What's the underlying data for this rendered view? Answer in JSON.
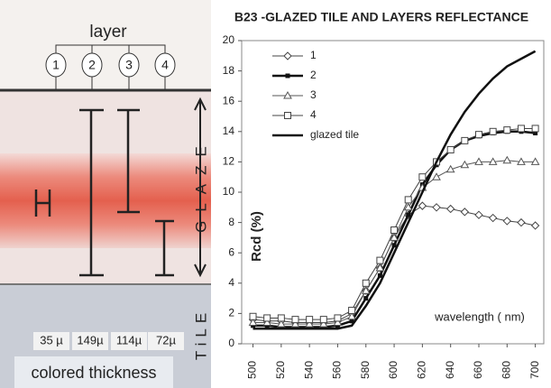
{
  "diagram": {
    "title": "layer",
    "layers": [
      "1",
      "2",
      "3",
      "4"
    ],
    "thicknesses": [
      "35 µ",
      "149µ",
      "114µ",
      "72µ"
    ],
    "caption": "colored  thickness",
    "glaze": "GLAZE",
    "tile": "TiLE"
  },
  "chart_data": {
    "type": "line",
    "title": "B23 -GLAZED TILE  AND LAYERS  REFLECTANCE",
    "y_label": "Rcd   (%)",
    "x_label": "wavelength (   nm)",
    "x": [
      500,
      510,
      520,
      530,
      540,
      550,
      560,
      570,
      580,
      590,
      600,
      610,
      620,
      630,
      640,
      650,
      660,
      670,
      680,
      690,
      700
    ],
    "series": [
      {
        "name": "1",
        "color": "#444444",
        "marker": "diamond",
        "width": 1,
        "values": [
          1.6,
          1.5,
          1.5,
          1.4,
          1.4,
          1.4,
          1.5,
          2,
          3.5,
          5,
          7,
          8.5,
          9.1,
          9,
          8.9,
          8.7,
          8.5,
          8.3,
          8.1,
          8,
          7.8
        ]
      },
      {
        "name": "2",
        "color": "#111111",
        "marker": "dot",
        "width": 2.5,
        "values": [
          1.2,
          1.2,
          1.1,
          1.1,
          1.1,
          1.1,
          1.2,
          1.5,
          3,
          4.5,
          6.5,
          8.5,
          10.5,
          11.8,
          12.8,
          13.4,
          13.7,
          13.9,
          14,
          14,
          13.9
        ]
      },
      {
        "name": "3",
        "color": "#555555",
        "marker": "triangle",
        "width": 1,
        "values": [
          1.4,
          1.4,
          1.3,
          1.3,
          1.3,
          1.3,
          1.4,
          1.8,
          3.5,
          5,
          7,
          9,
          10.3,
          11,
          11.5,
          11.8,
          12,
          12,
          12.1,
          12,
          12
        ]
      },
      {
        "name": "4",
        "color": "#444444",
        "marker": "square",
        "width": 1,
        "values": [
          1.8,
          1.7,
          1.7,
          1.6,
          1.6,
          1.6,
          1.7,
          2.2,
          4,
          5.5,
          7.5,
          9.5,
          11,
          12,
          12.8,
          13.4,
          13.8,
          14,
          14.1,
          14.2,
          14.2
        ]
      },
      {
        "name": "glazed  tile",
        "color": "#111111",
        "marker": "none",
        "width": 2.5,
        "values": [
          1,
          1,
          1,
          1,
          1,
          1,
          1,
          1.2,
          2.5,
          4,
          6,
          8,
          10,
          12,
          13.8,
          15.3,
          16.5,
          17.5,
          18.3,
          18.8,
          19.3
        ]
      }
    ],
    "xlim": [
      492,
      706
    ],
    "xticks": [
      500,
      520,
      540,
      560,
      580,
      600,
      620,
      640,
      660,
      680,
      700
    ],
    "ylim": [
      0,
      20
    ],
    "yticks": [
      0,
      2,
      4,
      6,
      8,
      10,
      12,
      14,
      16,
      18,
      20
    ],
    "grid": false,
    "legend": "upper-left"
  }
}
